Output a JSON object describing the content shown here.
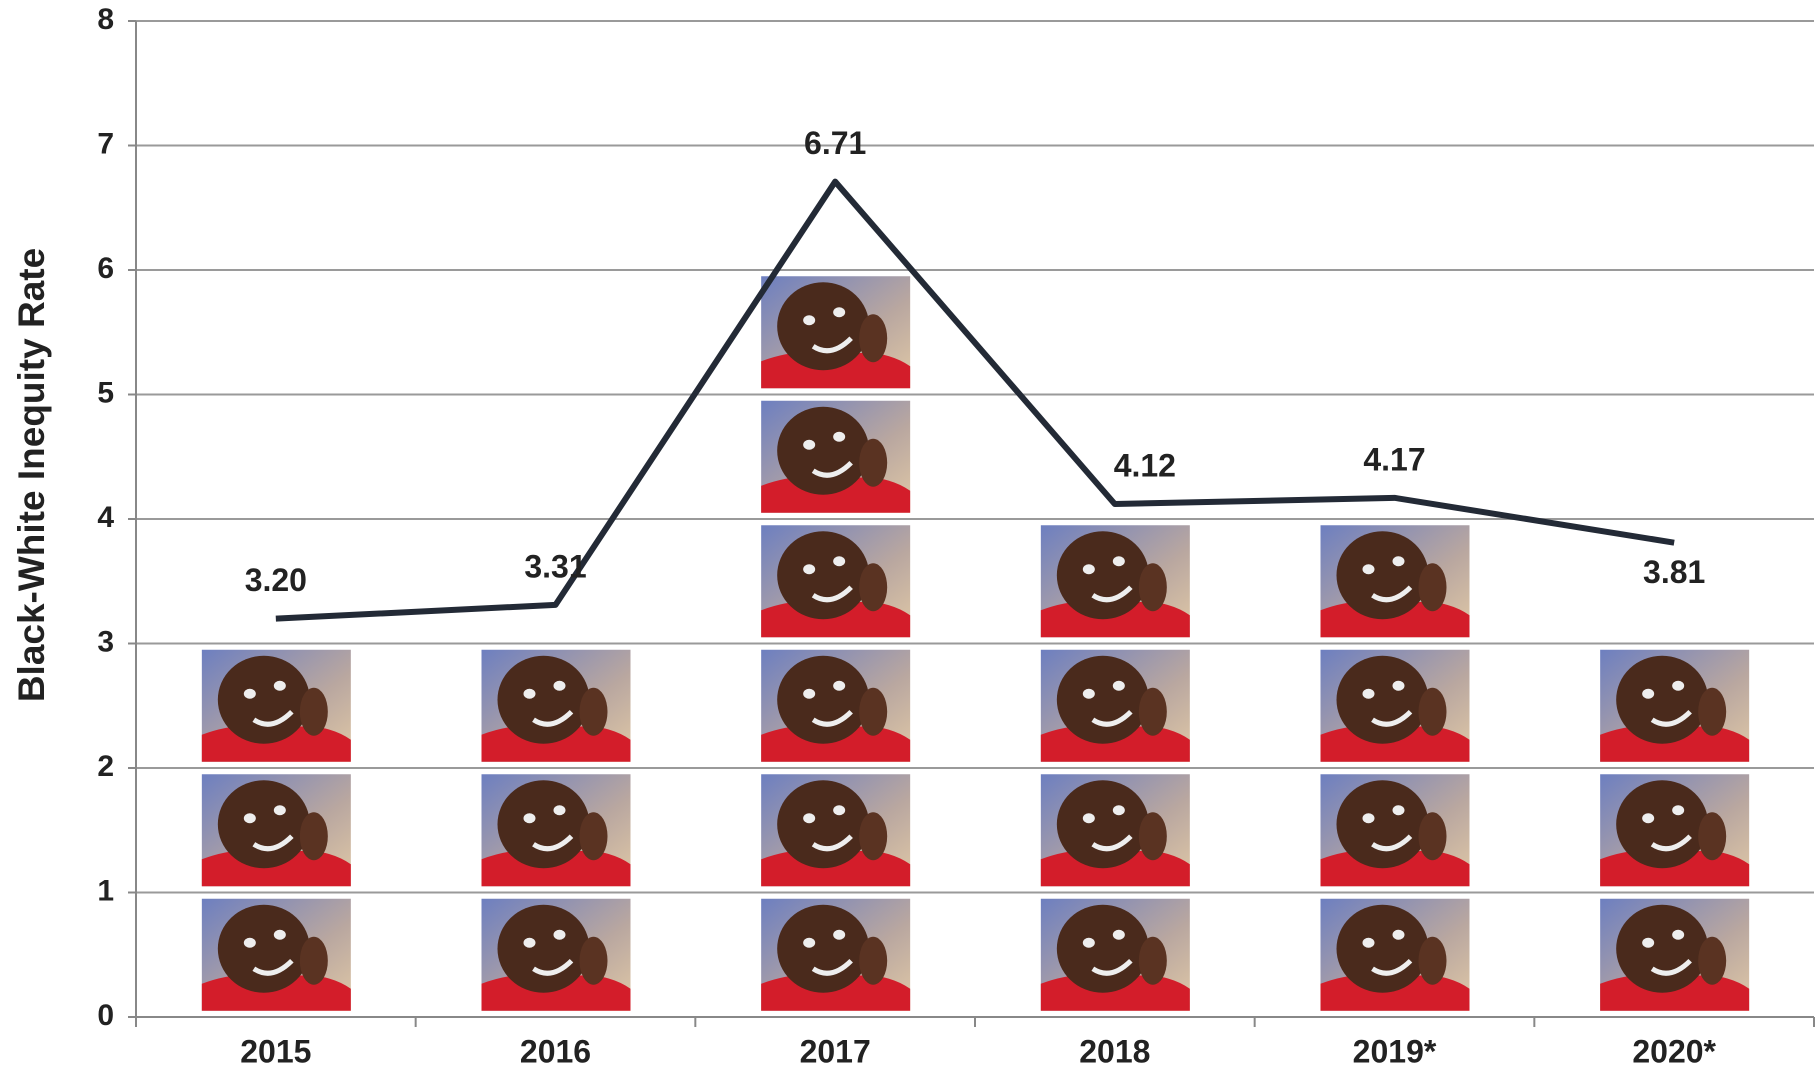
{
  "chart_data": {
    "type": "line",
    "y_label": "Black-White Inequity Rate",
    "categories": [
      "2015",
      "2016",
      "2017",
      "2018",
      "2019*",
      "2020*"
    ],
    "series": [
      {
        "name": "Black-White Inequity Rate",
        "color": "#232a36",
        "values": [
          3.2,
          3.31,
          6.71,
          4.12,
          4.17,
          3.81
        ],
        "value_labels": [
          "3.20",
          "3.31",
          "6.71",
          "4.12",
          "4.17",
          "3.81"
        ]
      }
    ],
    "ylim": [
      0,
      8
    ],
    "yticks": [
      0,
      1,
      2,
      3,
      4,
      5,
      6,
      7,
      8
    ],
    "grid": true
  }
}
